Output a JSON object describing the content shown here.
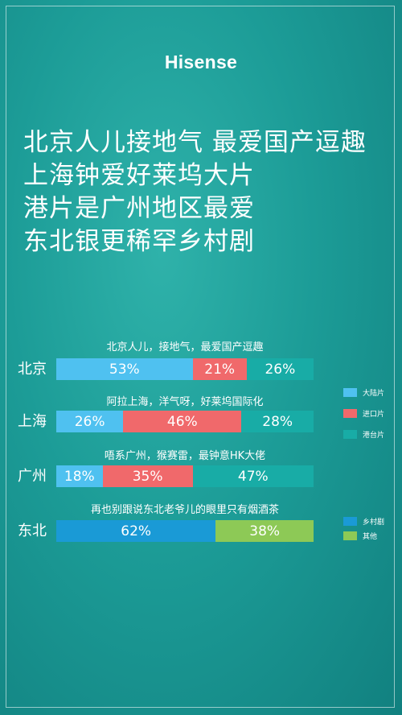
{
  "brand": "Hisense",
  "headline": [
    "北京人儿接地气 最爱国产逗趣",
    "上海钟爱好莱坞大片",
    "港片是广州地区最爱",
    "东北银更稀罕乡村剧"
  ],
  "colors": {
    "mainland": "#4fc1f0",
    "import": "#f0696b",
    "hk_tw": "#18aca6",
    "rural": "#1a9ad6",
    "other": "#8dc956"
  },
  "chart_data": [
    {
      "type": "bar",
      "stacked": "horizontal-100%",
      "categories": [
        "北京",
        "上海",
        "广州"
      ],
      "captions": [
        "北京人儿，接地气，最爱国产逗趣",
        "阿拉上海，洋气呀，好莱坞国际化",
        "唔系广州，猴赛雷，最钟意HK大佬"
      ],
      "series": [
        {
          "name": "大陆片",
          "color": "#4fc1f0",
          "values": [
            53,
            26,
            18
          ],
          "labels": [
            "53%",
            "26%",
            "18%"
          ]
        },
        {
          "name": "进口片",
          "color": "#f0696b",
          "values": [
            21,
            46,
            35
          ],
          "labels": [
            "21%",
            "46%",
            "35%"
          ]
        },
        {
          "name": "港台片",
          "color": "#18aca6",
          "values": [
            26,
            28,
            47
          ],
          "labels": [
            "26%",
            "28%",
            "47%"
          ]
        }
      ],
      "legend": "right"
    },
    {
      "type": "bar",
      "stacked": "horizontal-100%",
      "categories": [
        "东北"
      ],
      "captions": [
        "再也别跟说东北老爷儿的眼里只有烟酒茶"
      ],
      "series": [
        {
          "name": "乡村剧",
          "color": "#1a9ad6",
          "values": [
            62
          ],
          "labels": [
            "62%"
          ]
        },
        {
          "name": "其他",
          "color": "#8dc956",
          "values": [
            38
          ],
          "labels": [
            "38%"
          ]
        }
      ],
      "legend": "right"
    }
  ]
}
